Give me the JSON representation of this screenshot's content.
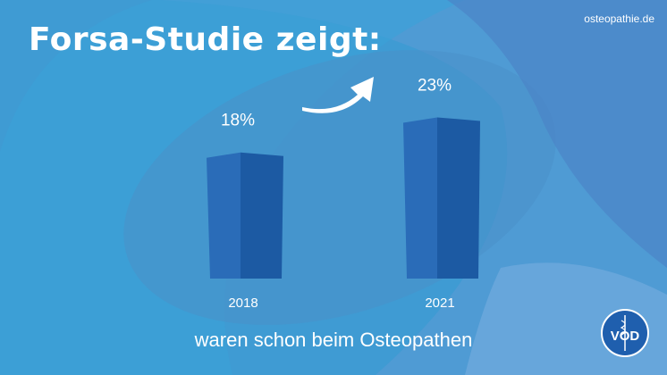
{
  "title": "Forsa-Studie zeigt:",
  "website": "osteopathie.de",
  "subtitle": "waren schon beim Osteopathen",
  "logo_text": "VOD",
  "colors": {
    "background": "#3f9bd3",
    "bar_front": "#2a6cb8",
    "bar_side": "#1c5aa3",
    "text": "#ffffff"
  },
  "chart_data": {
    "type": "bar",
    "categories": [
      "2018",
      "2021"
    ],
    "values": [
      18,
      23
    ],
    "value_labels": [
      "18%",
      "23%"
    ],
    "unit": "%",
    "title": "Forsa-Studie zeigt:",
    "xlabel": "",
    "ylabel": "",
    "ylim": [
      0,
      26
    ],
    "grid": false,
    "annotation": "arrow-up-right-icon"
  }
}
